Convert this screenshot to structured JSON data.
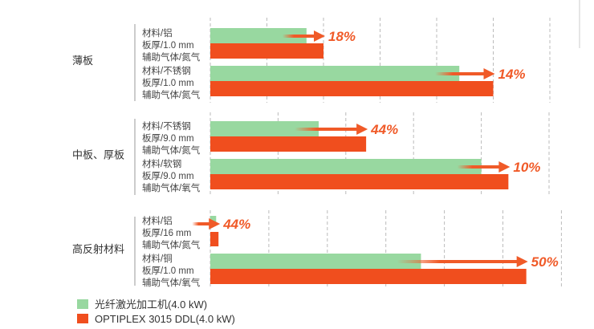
{
  "chart_data": {
    "type": "bar",
    "orientation": "horizontal",
    "grid": true,
    "legend_placement": "bottom-left",
    "colors": {
      "fiber": "#98d8a0",
      "ddl": "#f04e1e",
      "arrow": "#f05a28"
    },
    "legend": [
      "光纤激光加工机(4.0 kW)",
      "OPTIPLEX 3015 DDL(4.0 kW)"
    ],
    "groups": [
      {
        "name": "薄板",
        "items": [
          {
            "lines": [
              "材料/铝",
              "板厚/1.0 mm",
              "辅助气体/氮气"
            ],
            "fiber": 1.7,
            "ddl": 2.0,
            "increase": "18%"
          },
          {
            "lines": [
              "材料/不锈钢",
              "板厚/1.0 mm",
              "辅助气体/氮气"
            ],
            "fiber": 4.4,
            "ddl": 5.0,
            "increase": "14%"
          }
        ]
      },
      {
        "name": "中板、厚板",
        "items": [
          {
            "lines": [
              "材料/不锈钢",
              "板厚/9.0 mm",
              "辅助气体/氮气"
            ],
            "fiber": 1.6,
            "ddl": 2.3,
            "increase": "44%"
          },
          {
            "lines": [
              "材料/软钢",
              "板厚/9.0 mm",
              "辅助气体/氧气"
            ],
            "fiber": 4.0,
            "ddl": 4.4,
            "increase": "10%"
          }
        ]
      },
      {
        "name": "高反射材料",
        "items": [
          {
            "lines": [
              "材料/铝",
              "板厚/16 mm",
              "辅助气体/氮气"
            ],
            "fiber": 0.1,
            "ddl": 0.14,
            "increase": "44%"
          },
          {
            "lines": [
              "材料/铜",
              "板厚/1.0 mm",
              "辅助气体/氧气"
            ],
            "fiber": 3.6,
            "ddl": 5.4,
            "increase": "50%"
          }
        ]
      }
    ]
  }
}
